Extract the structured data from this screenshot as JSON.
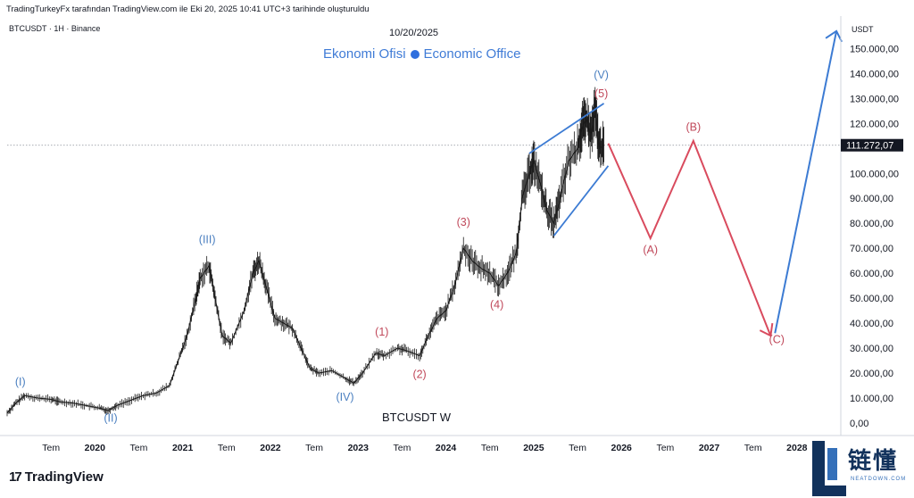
{
  "header": {
    "attribution": "TradingTurkeyFx tarafından TradingView.com ile Eki 20, 2025 10:41 UTC+3 tarihinde oluşturuldu",
    "symbol": "BTCUSDT · 1H · Binance",
    "date": "10/20/2025",
    "watermark_left": "Ekonomi Ofisi",
    "watermark_right": "Economic Office"
  },
  "chart_data": {
    "type": "line",
    "chart_label": "BTCUSDT   W",
    "y_axis_title": "USDT",
    "y_ticks": [
      "150.000,00",
      "140.000,00",
      "130.000,00",
      "120.000,00",
      "100.000,00",
      "90.000,00",
      "80.000,00",
      "70.000,00",
      "60.000,00",
      "50.000,00",
      "40.000,00",
      "30.000,00",
      "20.000,00",
      "10.000,00",
      "0,00"
    ],
    "y_tick_values": [
      150000,
      140000,
      130000,
      120000,
      100000,
      90000,
      80000,
      70000,
      60000,
      50000,
      40000,
      30000,
      20000,
      10000,
      0
    ],
    "ylim": [
      -5000,
      163000
    ],
    "x_ticks": [
      "Tem",
      "2020",
      "Tem",
      "2021",
      "Tem",
      "2022",
      "Tem",
      "2023",
      "Tem",
      "2024",
      "Tem",
      "2025",
      "Tem",
      "2026",
      "Tem",
      "2027",
      "Tem",
      "2028"
    ],
    "x_tick_values": [
      2019.5,
      2020,
      2020.5,
      2021,
      2021.5,
      2022,
      2022.5,
      2023,
      2023.5,
      2024,
      2024.5,
      2025,
      2025.5,
      2026,
      2026.5,
      2027,
      2027.5,
      2028
    ],
    "xlim": [
      2019.0,
      2028.5
    ],
    "current_price": {
      "label": "111.272,07",
      "value": 111272
    },
    "price_series": {
      "name": "BTCUSDT",
      "x": [
        2019.0,
        2019.1,
        2019.2,
        2019.35,
        2019.5,
        2019.6,
        2019.75,
        2019.9,
        2020.05,
        2020.15,
        2020.25,
        2020.4,
        2020.55,
        2020.7,
        2020.85,
        2020.95,
        2021.05,
        2021.15,
        2021.2,
        2021.3,
        2021.37,
        2021.45,
        2021.55,
        2021.7,
        2021.8,
        2021.87,
        2021.95,
        2022.05,
        2022.15,
        2022.25,
        2022.35,
        2022.45,
        2022.55,
        2022.7,
        2022.85,
        2022.95,
        2023.05,
        2023.2,
        2023.3,
        2023.45,
        2023.55,
        2023.7,
        2023.8,
        2023.9,
        2024.0,
        2024.1,
        2024.2,
        2024.3,
        2024.4,
        2024.5,
        2024.6,
        2024.7,
        2024.8,
        2024.87,
        2024.95,
        2025.0,
        2025.08,
        2025.15,
        2025.23,
        2025.3,
        2025.4,
        2025.5,
        2025.55,
        2025.6,
        2025.65,
        2025.7,
        2025.75,
        2025.8
      ],
      "y": [
        4000,
        8000,
        11000,
        10000,
        9500,
        8500,
        8000,
        7000,
        6000,
        5000,
        7000,
        9000,
        11000,
        12000,
        15000,
        25000,
        35000,
        50000,
        58000,
        63000,
        50000,
        35000,
        32000,
        45000,
        60000,
        65000,
        55000,
        42000,
        40000,
        38000,
        30000,
        22000,
        20000,
        21000,
        18000,
        16000,
        20000,
        28000,
        27000,
        30000,
        29000,
        27000,
        35000,
        42000,
        45000,
        55000,
        70000,
        65000,
        62000,
        60000,
        55000,
        60000,
        68000,
        90000,
        100000,
        105000,
        95000,
        85000,
        80000,
        90000,
        105000,
        110000,
        118000,
        122000,
        115000,
        125000,
        110000,
        111272
      ]
    },
    "wave_labels": [
      {
        "text": "(I)",
        "x": 2019.15,
        "y": 15000,
        "color": "#4a7fc0"
      },
      {
        "text": "(II)",
        "x": 2020.18,
        "y": 500,
        "color": "#4a7fc0"
      },
      {
        "text": "(III)",
        "x": 2021.28,
        "y": 72000,
        "color": "#4a7fc0"
      },
      {
        "text": "(IV)",
        "x": 2022.85,
        "y": 9000,
        "color": "#4a7fc0"
      },
      {
        "text": "(V)",
        "x": 2025.77,
        "y": 138000,
        "color": "#4a7fc0"
      },
      {
        "text": "(1)",
        "x": 2023.27,
        "y": 35000,
        "color": "#c0485a"
      },
      {
        "text": "(2)",
        "x": 2023.7,
        "y": 18000,
        "color": "#c0485a"
      },
      {
        "text": "(3)",
        "x": 2024.2,
        "y": 79000,
        "color": "#c0485a"
      },
      {
        "text": "(4)",
        "x": 2024.58,
        "y": 46000,
        "color": "#c0485a"
      },
      {
        "text": "(5)",
        "x": 2025.77,
        "y": 130500,
        "color": "#c0485a"
      },
      {
        "text": "(A)",
        "x": 2026.33,
        "y": 68000,
        "color": "#c0485a"
      },
      {
        "text": "(B)",
        "x": 2026.82,
        "y": 117000,
        "color": "#c0485a"
      },
      {
        "text": "(C)",
        "x": 2027.77,
        "y": 32000,
        "color": "#c0485a"
      }
    ],
    "wedge_lines": [
      {
        "x": [
          2024.95,
          2025.8
        ],
        "y": [
          108000,
          128000
        ]
      },
      {
        "x": [
          2025.23,
          2025.85
        ],
        "y": [
          75000,
          103000
        ]
      }
    ],
    "projection_abc": {
      "x": [
        2025.85,
        2026.33,
        2026.82,
        2027.7
      ],
      "y": [
        112000,
        74000,
        113000,
        35000
      ]
    },
    "projection_up": {
      "x": [
        2027.75,
        2028.45
      ],
      "y": [
        36000,
        157000
      ]
    }
  },
  "colors": {
    "blue": "#3c7bd3",
    "red": "#d94b5e",
    "candles": "#1a1a1a"
  },
  "branding": {
    "tradingview": "TradingView",
    "site_name": "链懂",
    "site_sub": "NEATDOWN.COM"
  }
}
